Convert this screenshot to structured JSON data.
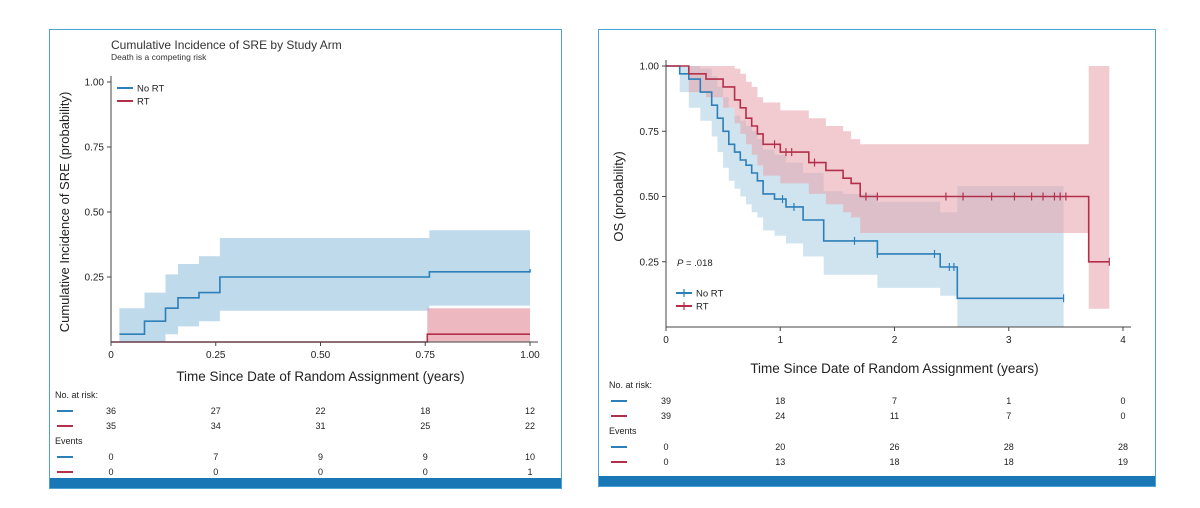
{
  "colors": {
    "no_rt": "#2c7fb8",
    "rt": "#b3304a",
    "no_rt_band": "#a9cde3",
    "rt_band": "#e8a0ab",
    "frame": "#4aa3d3",
    "footer": "#1a77b5"
  },
  "chart_data": [
    {
      "type": "line",
      "title": "Cumulative Incidence of SRE by Study Arm",
      "subtitle": "Death is a competing risk",
      "xlabel": "Time Since Date of Random Assignment (years)",
      "ylabel": "Cumulative Incidence of SRE (probability)",
      "xlim": [
        0,
        1.0
      ],
      "ylim": [
        0,
        1.0
      ],
      "x_ticks": [
        "0",
        "0.25",
        "0.50",
        "0.75",
        "1.00"
      ],
      "y_ticks": [
        "0.25",
        "0.50",
        "0.75",
        "1.00"
      ],
      "legend": {
        "position": "top-left",
        "entries": [
          "No RT",
          "RT"
        ]
      },
      "series": [
        {
          "name": "No RT",
          "style": "step",
          "x": [
            0.02,
            0.08,
            0.13,
            0.16,
            0.21,
            0.26,
            0.76,
            1.0
          ],
          "y": [
            0.03,
            0.08,
            0.13,
            0.17,
            0.19,
            0.25,
            0.27,
            0.28
          ],
          "ci_upper": [
            0.13,
            0.19,
            0.26,
            0.3,
            0.33,
            0.4,
            0.43,
            0.43
          ],
          "ci_lower": [
            0.0,
            0.0,
            0.03,
            0.06,
            0.08,
            0.12,
            0.14,
            0.14
          ]
        },
        {
          "name": "RT",
          "style": "step",
          "x": [
            0.0,
            0.755,
            1.0
          ],
          "y": [
            0.0,
            0.03,
            0.03
          ],
          "ci_upper": [
            0.0,
            0.13,
            0.13
          ],
          "ci_lower": [
            0.0,
            0.0,
            0.0
          ]
        }
      ],
      "risk_table": {
        "header": "No. at risk:",
        "x": [
          "0",
          "0.25",
          "0.50",
          "0.75",
          "1.00"
        ],
        "at_risk": [
          [
            "36",
            "27",
            "22",
            "18",
            "12"
          ],
          [
            "35",
            "34",
            "31",
            "25",
            "22"
          ]
        ],
        "events_label": "Events",
        "events": [
          [
            "0",
            "7",
            "9",
            "9",
            "10"
          ],
          [
            "0",
            "0",
            "0",
            "0",
            "1"
          ]
        ]
      }
    },
    {
      "type": "line",
      "title": "",
      "xlabel": "Time Since Date of Random Assignment (years)",
      "ylabel": "OS (probability)",
      "xlim": [
        0,
        4
      ],
      "ylim": [
        0,
        1.0
      ],
      "x_ticks": [
        "0",
        "1",
        "2",
        "3",
        "4"
      ],
      "y_ticks": [
        "0.25",
        "0.50",
        "0.75",
        "1.00"
      ],
      "annotation": {
        "prefix": "P",
        "text": " = .018"
      },
      "legend": {
        "position": "bottom-left",
        "entries": [
          "No RT",
          "RT"
        ]
      },
      "series": [
        {
          "name": "No RT",
          "style": "step",
          "x": [
            0,
            0.12,
            0.2,
            0.3,
            0.4,
            0.45,
            0.5,
            0.55,
            0.6,
            0.65,
            0.7,
            0.75,
            0.8,
            0.85,
            0.95,
            1.05,
            1.2,
            1.38,
            1.55,
            1.85,
            2.4,
            2.55,
            3.48
          ],
          "y": [
            1.0,
            0.97,
            0.95,
            0.9,
            0.85,
            0.8,
            0.75,
            0.7,
            0.67,
            0.64,
            0.62,
            0.59,
            0.56,
            0.51,
            0.49,
            0.46,
            0.41,
            0.33,
            0.33,
            0.28,
            0.23,
            0.11,
            0.11
          ],
          "ci_upper": [
            1.0,
            1.0,
            1.0,
            0.99,
            0.96,
            0.92,
            0.88,
            0.84,
            0.81,
            0.79,
            0.77,
            0.75,
            0.72,
            0.68,
            0.66,
            0.63,
            0.59,
            0.52,
            0.51,
            0.48,
            0.44,
            0.54,
            0.54
          ],
          "ci_lower": [
            1.0,
            0.9,
            0.84,
            0.79,
            0.73,
            0.67,
            0.61,
            0.56,
            0.53,
            0.5,
            0.47,
            0.44,
            0.42,
            0.37,
            0.35,
            0.32,
            0.27,
            0.2,
            0.2,
            0.15,
            0.12,
            0.0,
            0.0
          ],
          "censor_x": [
            1.02,
            1.12,
            1.65,
            1.85,
            2.35,
            2.48,
            2.52,
            3.48
          ]
        },
        {
          "name": "RT",
          "style": "step",
          "x": [
            0,
            0.2,
            0.35,
            0.5,
            0.6,
            0.65,
            0.7,
            0.75,
            0.8,
            0.85,
            1.0,
            1.25,
            1.4,
            1.55,
            1.62,
            1.7,
            3.7,
            3.88
          ],
          "y": [
            1.0,
            0.97,
            0.95,
            0.92,
            0.87,
            0.84,
            0.8,
            0.77,
            0.74,
            0.7,
            0.67,
            0.63,
            0.6,
            0.57,
            0.55,
            0.5,
            0.25,
            0.25
          ],
          "ci_upper": [
            1.0,
            1.0,
            1.0,
            1.0,
            0.99,
            0.97,
            0.94,
            0.92,
            0.88,
            0.86,
            0.83,
            0.8,
            0.77,
            0.75,
            0.72,
            0.7,
            1.0,
            1.0
          ],
          "ci_lower": [
            1.0,
            0.9,
            0.88,
            0.84,
            0.78,
            0.74,
            0.7,
            0.66,
            0.62,
            0.58,
            0.55,
            0.51,
            0.47,
            0.44,
            0.42,
            0.36,
            0.07,
            0.07
          ],
          "censor_x": [
            0.95,
            1.05,
            1.1,
            1.3,
            1.75,
            1.85,
            2.45,
            2.6,
            2.85,
            3.05,
            3.2,
            3.3,
            3.4,
            3.45,
            3.5,
            3.88
          ]
        }
      ],
      "risk_table": {
        "header": "No. at risk:",
        "x": [
          "0",
          "1",
          "2",
          "3",
          "4"
        ],
        "at_risk": [
          [
            "39",
            "18",
            "7",
            "1",
            "0"
          ],
          [
            "39",
            "24",
            "11",
            "7",
            "0"
          ]
        ],
        "events_label": "Events",
        "events": [
          [
            "0",
            "20",
            "26",
            "28",
            "28"
          ],
          [
            "0",
            "13",
            "18",
            "18",
            "19"
          ]
        ]
      }
    }
  ]
}
